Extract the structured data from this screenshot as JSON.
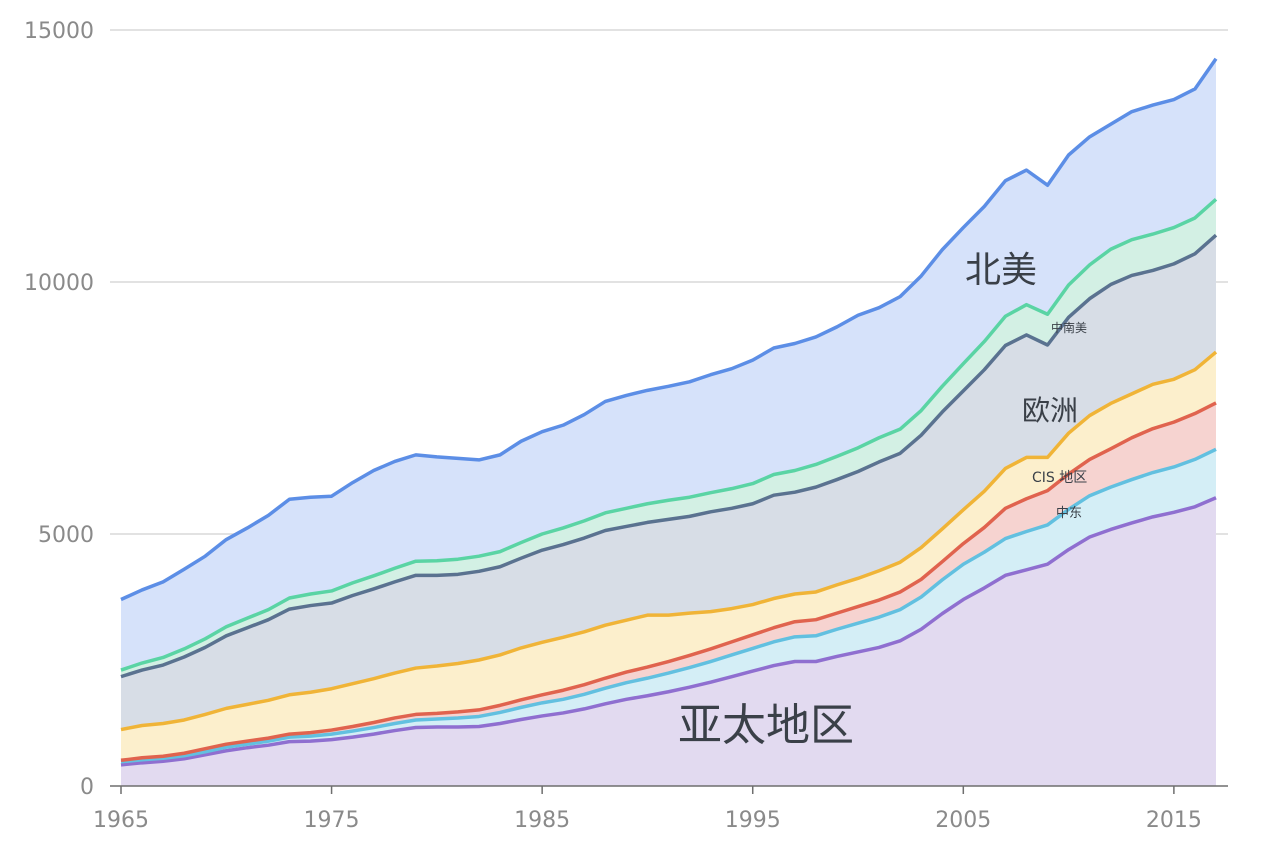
{
  "chart_data": {
    "type": "area",
    "stacked": true,
    "title": "",
    "xlabel": "",
    "ylabel": "",
    "xlim": [
      1965,
      2017
    ],
    "ylim": [
      0,
      15000
    ],
    "grid": true,
    "x": [
      1965,
      1966,
      1967,
      1968,
      1969,
      1970,
      1971,
      1972,
      1973,
      1974,
      1975,
      1976,
      1977,
      1978,
      1979,
      1980,
      1981,
      1982,
      1983,
      1984,
      1985,
      1986,
      1987,
      1988,
      1989,
      1990,
      1991,
      1992,
      1993,
      1994,
      1995,
      1996,
      1997,
      1998,
      1999,
      2000,
      2001,
      2002,
      2003,
      2004,
      2005,
      2006,
      2007,
      2008,
      2009,
      2010,
      2011,
      2012,
      2013,
      2014,
      2015,
      2016,
      2017
    ],
    "x_ticks": [
      "1965",
      "1975",
      "1985",
      "1995",
      "2005",
      "2015"
    ],
    "x_tick_values": [
      1965,
      1975,
      1985,
      1995,
      2005,
      2015
    ],
    "y_ticks": [
      "0",
      "5000",
      "10000",
      "15000"
    ],
    "y_tick_values": [
      0,
      5000,
      10000,
      15000
    ],
    "series": [
      {
        "name": "亚太地区",
        "color": "#8f6fd0",
        "fill": "#e2daf0",
        "values": [
          420,
          460,
          490,
          540,
          620,
          700,
          760,
          810,
          880,
          890,
          920,
          970,
          1030,
          1100,
          1160,
          1170,
          1170,
          1180,
          1240,
          1320,
          1390,
          1450,
          1530,
          1630,
          1720,
          1790,
          1870,
          1960,
          2060,
          2170,
          2280,
          2390,
          2470,
          2470,
          2570,
          2660,
          2750,
          2880,
          3110,
          3420,
          3700,
          3930,
          4180,
          4290,
          4400,
          4690,
          4940,
          5090,
          5220,
          5340,
          5430,
          5540,
          5720
        ]
      },
      {
        "name": "",
        "color": "#62c0e0",
        "fill": "#d4eef6",
        "values": [
          60,
          60,
          60,
          60,
          60,
          70,
          70,
          80,
          90,
          100,
          110,
          120,
          130,
          140,
          150,
          160,
          180,
          200,
          220,
          240,
          260,
          270,
          290,
          310,
          330,
          350,
          370,
          390,
          410,
          430,
          450,
          470,
          490,
          510,
          540,
          570,
          600,
          620,
          640,
          670,
          700,
          710,
          730,
          760,
          780,
          800,
          820,
          840,
          860,
          880,
          900,
          940,
          960
        ]
      },
      {
        "name": "中东",
        "color": "#e0634e",
        "fill": "#f6d3d0",
        "values": [
          30,
          40,
          40,
          50,
          60,
          60,
          60,
          60,
          60,
          70,
          80,
          90,
          100,
          110,
          110,
          110,
          120,
          130,
          140,
          150,
          160,
          180,
          190,
          200,
          210,
          220,
          230,
          240,
          250,
          260,
          270,
          280,
          300,
          320,
          320,
          330,
          340,
          350,
          350,
          360,
          410,
          490,
          600,
          650,
          680,
          700,
          720,
          760,
          830,
          870,
          890,
          910,
          920
        ]
      },
      {
        "name": "CIS 地区",
        "color": "#f0b437",
        "fill": "#fcefcc",
        "values": [
          610,
          640,
          650,
          660,
          680,
          710,
          730,
          750,
          780,
          800,
          820,
          850,
          870,
          890,
          920,
          940,
          960,
          990,
          1000,
          1030,
          1040,
          1050,
          1050,
          1050,
          1030,
          1030,
          920,
          840,
          740,
          660,
          600,
          580,
          550,
          550,
          560,
          560,
          580,
          590,
          630,
          650,
          670,
          720,
          790,
          820,
          660,
          810,
          870,
          900,
          870,
          880,
          850,
          870,
          1010
        ]
      },
      {
        "name": "欧洲",
        "color": "#5a7290",
        "fill": "#d7dde6",
        "values": [
          1050,
          1100,
          1160,
          1250,
          1330,
          1440,
          1520,
          1600,
          1700,
          1720,
          1700,
          1750,
          1780,
          1810,
          1840,
          1800,
          1770,
          1760,
          1750,
          1780,
          1830,
          1840,
          1860,
          1880,
          1860,
          1840,
          1900,
          1920,
          1980,
          1990,
          2000,
          2050,
          2020,
          2080,
          2090,
          2120,
          2160,
          2160,
          2230,
          2320,
          2360,
          2410,
          2440,
          2430,
          2230,
          2300,
          2320,
          2360,
          2350,
          2260,
          2290,
          2300,
          2320
        ]
      },
      {
        "name": "中南美",
        "color": "#5ad4a4",
        "fill": "#d3f0e4",
        "values": [
          130,
          140,
          150,
          160,
          170,
          180,
          190,
          200,
          220,
          230,
          240,
          250,
          260,
          270,
          280,
          290,
          300,
          300,
          300,
          310,
          320,
          330,
          340,
          350,
          360,
          370,
          380,
          380,
          380,
          390,
          400,
          410,
          430,
          450,
          460,
          470,
          480,
          480,
          490,
          510,
          540,
          560,
          580,
          600,
          610,
          640,
          670,
          700,
          710,
          720,
          720,
          710,
          710
        ]
      },
      {
        "name": "北美",
        "color": "#5c8ee6",
        "fill": "#d6e2fa",
        "values": [
          1400,
          1450,
          1500,
          1580,
          1640,
          1730,
          1790,
          1870,
          1960,
          1920,
          1880,
          1990,
          2090,
          2120,
          2110,
          2060,
          2000,
          1910,
          1920,
          2010,
          2030,
          2040,
          2110,
          2210,
          2240,
          2250,
          2260,
          2290,
          2340,
          2380,
          2450,
          2510,
          2520,
          2530,
          2570,
          2630,
          2580,
          2630,
          2670,
          2710,
          2700,
          2680,
          2690,
          2670,
          2560,
          2580,
          2540,
          2480,
          2540,
          2560,
          2540,
          2560,
          2790
        ]
      }
    ],
    "annotations": [
      "北美",
      "中南美",
      "欧洲",
      "CIS 地区",
      "中东",
      "亚太地区"
    ]
  }
}
